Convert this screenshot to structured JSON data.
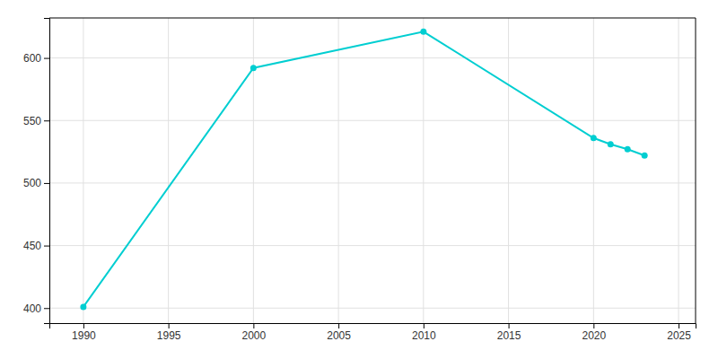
{
  "chart_data": {
    "type": "line",
    "x": [
      1990,
      2000,
      2010,
      2020,
      2021,
      2022,
      2023
    ],
    "values": [
      401,
      592,
      621,
      536,
      531,
      527,
      522
    ],
    "color": "#00CED1",
    "marker": "circle",
    "xlim": [
      1988,
      2026
    ],
    "ylim": [
      388,
      632
    ],
    "xticks": [
      1990,
      1995,
      2000,
      2005,
      2010,
      2015,
      2020,
      2025
    ],
    "yticks": [
      400,
      450,
      500,
      550,
      600
    ],
    "grid": true
  }
}
